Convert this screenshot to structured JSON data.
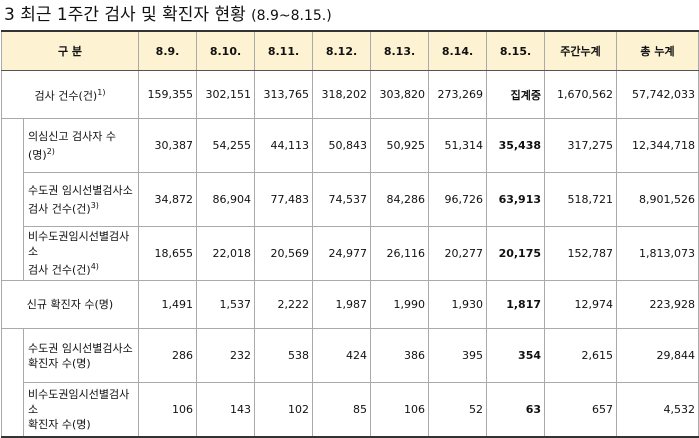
{
  "title": {
    "text": "3 최근 1주간 검사 및 확진자 현황",
    "period": "(8.9~8.15.)"
  },
  "table": {
    "header": [
      "구 분",
      "8.9.",
      "8.10.",
      "8.11.",
      "8.12.",
      "8.13.",
      "8.14.",
      "8.15.",
      "주간누계",
      "총 누계"
    ],
    "groups": [
      {
        "label": [
          "검사 건수(건)"
        ],
        "note": "1)",
        "cells": [
          "159,355",
          "302,151",
          "313,765",
          "318,202",
          "303,820",
          "273,269",
          "집계중",
          "1,670,562",
          "57,742,033"
        ],
        "sub_rows": [
          {
            "label": [
              "의심신고 검사자 수",
              "(명)"
            ],
            "note": "2)",
            "cells": [
              "30,387",
              "54,255",
              "44,113",
              "50,843",
              "50,925",
              "51,314",
              "35,438",
              "317,275",
              "12,344,718"
            ]
          },
          {
            "label": [
              "수도권 임시선별검사소",
              "검사 건수(건)"
            ],
            "note": "3)",
            "cells": [
              "34,872",
              "86,904",
              "77,483",
              "74,537",
              "84,286",
              "96,726",
              "63,913",
              "518,721",
              "8,901,526"
            ]
          },
          {
            "label": [
              "비수도권임시선별검사소",
              "검사 건수(건)"
            ],
            "note": "4)",
            "cells": [
              "18,655",
              "22,018",
              "20,569",
              "24,977",
              "26,116",
              "20,277",
              "20,175",
              "152,787",
              "1,813,073"
            ]
          }
        ]
      },
      {
        "label": [
          "신규 확진자 수(명)"
        ],
        "cells": [
          "1,491",
          "1,537",
          "2,222",
          "1,987",
          "1,990",
          "1,930",
          "1,817",
          "12,974",
          "223,928"
        ],
        "sub_rows": [
          {
            "label": [
              "수도권 임시선별검사소",
              "확진자 수(명)"
            ],
            "cells": [
              "286",
              "232",
              "538",
              "424",
              "386",
              "395",
              "354",
              "2,615",
              "29,844"
            ]
          },
          {
            "label": [
              "비수도권임시선별검사소",
              "확진자 수(명)"
            ],
            "cells": [
              "106",
              "143",
              "102",
              "85",
              "106",
              "52",
              "63",
              "657",
              "4,532"
            ]
          }
        ]
      }
    ]
  }
}
